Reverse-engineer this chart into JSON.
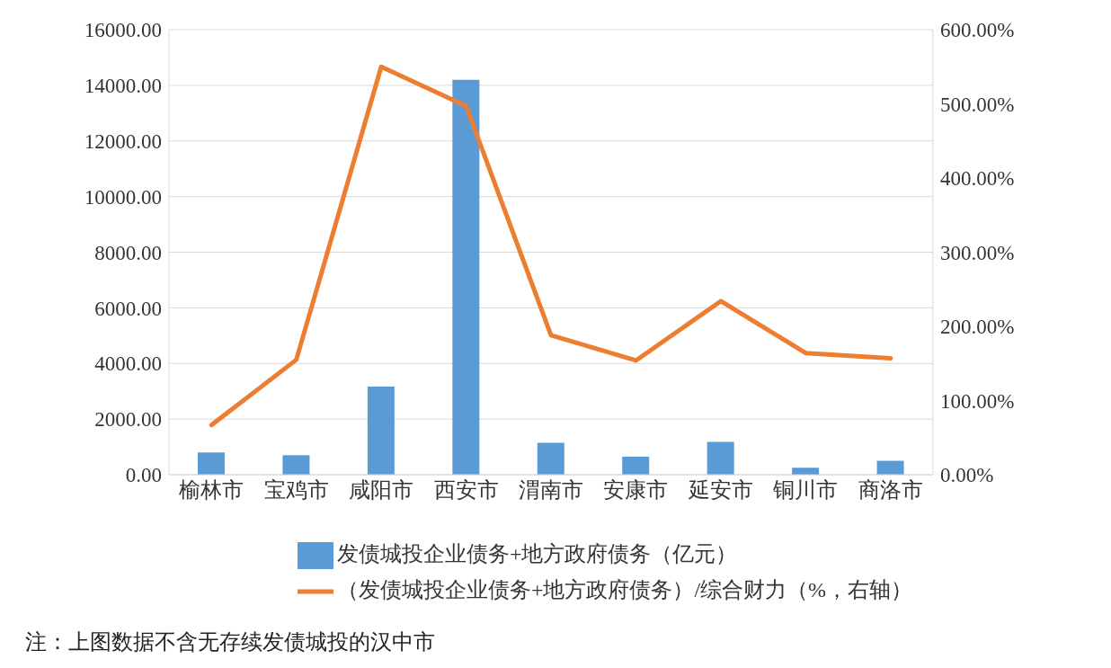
{
  "chart_data": {
    "type": "bar",
    "categories": [
      "榆林市",
      "宝鸡市",
      "咸阳市",
      "西安市",
      "渭南市",
      "安康市",
      "延安市",
      "铜川市",
      "商洛市"
    ],
    "series": [
      {
        "name": "发债城投企业债务+地方政府债务（亿元）",
        "color": "#5b9bd5",
        "values": [
          800,
          700,
          3170,
          14200,
          1150,
          650,
          1180,
          250,
          500
        ]
      },
      {
        "name": "（发债城投企业债务+地方政府债务）/综合财力（%，右轴）",
        "type": "line",
        "axis": "y2",
        "color": "#ed7d31",
        "values": [
          67,
          155,
          550,
          497,
          188,
          154,
          234,
          164,
          157
        ]
      }
    ],
    "ylim": [
      0,
      16000
    ],
    "yticks": [
      {
        "value": 0,
        "label": "0.00"
      },
      {
        "value": 2000,
        "label": "2000.00"
      },
      {
        "value": 4000,
        "label": "4000.00"
      },
      {
        "value": 6000,
        "label": "6000.00"
      },
      {
        "value": 8000,
        "label": "8000.00"
      },
      {
        "value": 10000,
        "label": "10000.00"
      },
      {
        "value": 12000,
        "label": "12000.00"
      },
      {
        "value": 14000,
        "label": "14000.00"
      },
      {
        "value": 16000,
        "label": "16000.00"
      }
    ],
    "y2lim": [
      0,
      600
    ],
    "y2ticks": [
      {
        "value": 0,
        "label": "0.00%"
      },
      {
        "value": 100,
        "label": "100.00%"
      },
      {
        "value": 200,
        "label": "200.00%"
      },
      {
        "value": 300,
        "label": "300.00%"
      },
      {
        "value": 400,
        "label": "400.00%"
      },
      {
        "value": 500,
        "label": "500.00%"
      },
      {
        "value": 600,
        "label": "600.00%"
      }
    ],
    "grid": "y",
    "legend": "bottom",
    "marker": "none",
    "line_style": "solid",
    "annotations": [
      "注：上图数据不含无存续发债城投的汉中市"
    ]
  }
}
